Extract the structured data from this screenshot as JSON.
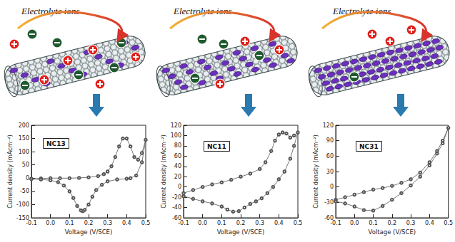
{
  "chart_data": [
    {
      "type": "line",
      "title": "NC13",
      "annotations": [
        "Electrolyte ions"
      ],
      "xlabel": "Voltage (V/SCE)",
      "ylabel": "Current density (mAcm⁻²)",
      "x": [
        -0.1,
        -0.05,
        0.0,
        0.05,
        0.1,
        0.15,
        0.2,
        0.25,
        0.28,
        0.3,
        0.32,
        0.34,
        0.36,
        0.38,
        0.4,
        0.42,
        0.44,
        0.46,
        0.48,
        0.5,
        0.48,
        0.45,
        0.42,
        0.4,
        0.35,
        0.3,
        0.27,
        0.24,
        0.22,
        0.2,
        0.18,
        0.17,
        0.16,
        0.14,
        0.12,
        0.1,
        0.07,
        0.04,
        0.0,
        -0.05,
        -0.1
      ],
      "values": [
        -2,
        -1,
        0,
        0,
        0,
        1,
        3,
        8,
        15,
        25,
        45,
        80,
        120,
        150,
        150,
        120,
        80,
        70,
        95,
        145,
        60,
        10,
        0,
        -2,
        -5,
        -12,
        -25,
        -45,
        -70,
        -100,
        -120,
        -125,
        -122,
        -105,
        -75,
        -50,
        -28,
        -15,
        -8,
        -5,
        -3
      ],
      "color": "#555555",
      "marker": "circle",
      "line_style": "solid",
      "grid": false,
      "xlim": [
        -0.1,
        0.5
      ],
      "xticks": [
        -0.1,
        {
          "value": 0,
          "label": "0.0"
        },
        0.1,
        0.2,
        0.3,
        0.4,
        0.5
      ],
      "ylim": [
        -150,
        200
      ],
      "yticks": [
        -150,
        -100,
        -50,
        0,
        50,
        100,
        150,
        200
      ]
    },
    {
      "type": "line",
      "title": "NC11",
      "annotations": [
        "Electrolyte ions"
      ],
      "xlabel": "Voltage (V/SCE)",
      "ylabel": "Current density (mAcm⁻²)",
      "x": [
        -0.1,
        -0.05,
        0.0,
        0.05,
        0.1,
        0.15,
        0.2,
        0.25,
        0.3,
        0.33,
        0.36,
        0.38,
        0.4,
        0.42,
        0.44,
        0.46,
        0.48,
        0.5,
        0.48,
        0.46,
        0.43,
        0.4,
        0.37,
        0.34,
        0.31,
        0.28,
        0.25,
        0.22,
        0.19,
        0.16,
        0.13,
        0.1,
        0.05,
        0.0,
        -0.05,
        -0.1
      ],
      "values": [
        -12,
        -6,
        0,
        5,
        9,
        14,
        20,
        26,
        35,
        48,
        70,
        90,
        102,
        106,
        104,
        96,
        100,
        106,
        80,
        55,
        30,
        15,
        0,
        -12,
        -22,
        -28,
        -33,
        -40,
        -47,
        -48,
        -44,
        -38,
        -32,
        -28,
        -23,
        -18
      ],
      "color": "#555555",
      "marker": "circle",
      "line_style": "solid",
      "grid": false,
      "xlim": [
        -0.1,
        0.5
      ],
      "xticks": [
        -0.1,
        {
          "value": 0,
          "label": "0.0"
        },
        0.1,
        0.2,
        0.3,
        0.4,
        0.5
      ],
      "ylim": [
        -60,
        120
      ],
      "yticks": [
        -60,
        -40,
        -20,
        0,
        20,
        40,
        60,
        80,
        100,
        120
      ]
    },
    {
      "type": "line",
      "title": "NC31",
      "annotations": [
        "Electrolyte ions"
      ],
      "xlabel": "Voltage (V/SCE)",
      "ylabel": "Current density (mAcm⁻²)",
      "x": [
        -0.1,
        -0.05,
        0.0,
        0.05,
        0.1,
        0.15,
        0.2,
        0.25,
        0.3,
        0.35,
        0.4,
        0.44,
        0.47,
        0.5,
        0.47,
        0.44,
        0.4,
        0.35,
        0.3,
        0.25,
        0.2,
        0.15,
        0.1,
        0.05,
        0.0,
        -0.05,
        -0.1
      ],
      "values": [
        -25,
        -20,
        -15,
        -10,
        -5,
        -2,
        2,
        8,
        15,
        28,
        48,
        70,
        90,
        115,
        85,
        65,
        42,
        20,
        3,
        -12,
        -25,
        -37,
        -46,
        -45,
        -38,
        -32,
        -28
      ],
      "color": "#555555",
      "marker": "circle",
      "line_style": "solid",
      "grid": false,
      "xlim": [
        -0.1,
        0.5
      ],
      "xticks": [
        -0.1,
        {
          "value": 0,
          "label": "0.0"
        },
        0.1,
        0.2,
        0.3,
        0.4,
        0.5
      ],
      "ylim": [
        -60,
        120
      ],
      "yticks": [
        -60,
        -30,
        0,
        30,
        60,
        90,
        120
      ]
    }
  ]
}
